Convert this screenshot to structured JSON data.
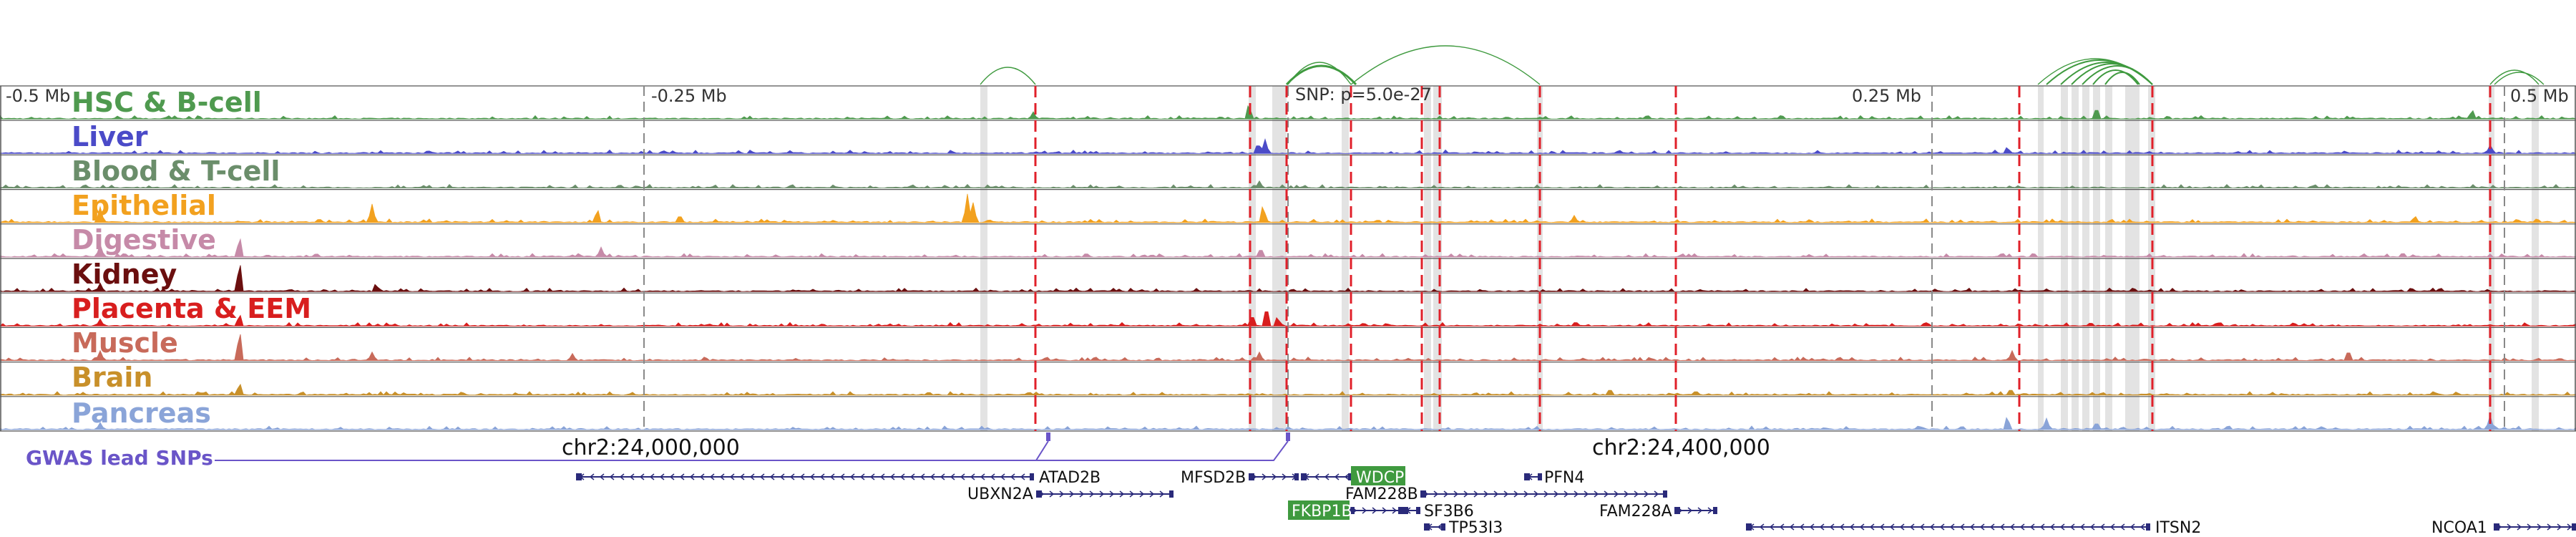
{
  "scale": {
    "left": "-0.5 Mb",
    "mid_left": "-0.25 Mb",
    "snp": "SNP: p=5.0e-27",
    "mid_right": "0.25 Mb",
    "right": "0.5 Mb"
  },
  "tracks": [
    {
      "label": "HSC & B-cell",
      "color": "#4f9a4f"
    },
    {
      "label": "Liver",
      "color": "#4b4bc8"
    },
    {
      "label": "Blood & T-cell",
      "color": "#6b8e6b"
    },
    {
      "label": "Epithelial",
      "color": "#f2a11f"
    },
    {
      "label": "Digestive",
      "color": "#c68aa8"
    },
    {
      "label": "Kidney",
      "color": "#6b0f0f"
    },
    {
      "label": "Placenta & EEM",
      "color": "#d81e1e"
    },
    {
      "label": "Muscle",
      "color": "#c86a5a"
    },
    {
      "label": "Brain",
      "color": "#c8902a"
    },
    {
      "label": "Pancreas",
      "color": "#8aa4d8"
    }
  ],
  "gwas_label": "GWAS lead SNPs",
  "gwas_color": "#6a55c8",
  "coords": {
    "left": "chr2:24,000,000",
    "right": "chr2:24,400,000"
  },
  "genes": [
    {
      "name": "ATAD2B",
      "strand": "minus",
      "highlight": false
    },
    {
      "name": "UBXN2A",
      "strand": "plus",
      "highlight": false
    },
    {
      "name": "MFSD2B",
      "strand": "plus",
      "highlight": false
    },
    {
      "name": "WDCP",
      "strand": "minus",
      "highlight": true
    },
    {
      "name": "PFN4",
      "strand": "minus",
      "highlight": false
    },
    {
      "name": "FAM228B",
      "strand": "plus",
      "highlight": false
    },
    {
      "name": "FKBP1B",
      "strand": "plus",
      "highlight": true
    },
    {
      "name": "SF3B6",
      "strand": "minus",
      "highlight": false
    },
    {
      "name": "TP53I3",
      "strand": "minus",
      "highlight": false
    },
    {
      "name": "FAM228A",
      "strand": "plus",
      "highlight": false
    },
    {
      "name": "ITSN2",
      "strand": "minus",
      "highlight": false
    },
    {
      "name": "NCOA1",
      "strand": "plus",
      "highlight": false
    }
  ],
  "colors": {
    "snp_line": "#e0202a",
    "region_shade": "#d9d9d9",
    "link_arc": "#3f9a3f",
    "gene_body": "#2a2a7a",
    "gene_highlight_bg": "#3f9a3f"
  }
}
